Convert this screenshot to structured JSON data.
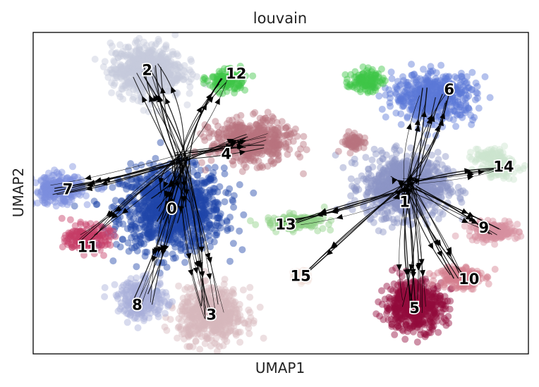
{
  "chart_data": {
    "type": "scatter",
    "title": "louvain",
    "xlabel": "UMAP1",
    "ylabel": "UMAP2",
    "grid": false,
    "legend": "on data",
    "xlim": [
      0,
      10
    ],
    "ylim": [
      0,
      10
    ],
    "stream": {
      "color": "#000000",
      "arrows": true
    },
    "clusters": [
      {
        "name": "0",
        "color": "#1f44a8",
        "center": [
          2.8,
          4.5
        ],
        "spread": [
          0.95,
          1.15
        ],
        "n": 1100,
        "label_pos": [
          2.8,
          4.5
        ]
      },
      {
        "name": "1",
        "color": "#8b95c6",
        "center": [
          7.5,
          5.2
        ],
        "spread": [
          0.75,
          0.85
        ],
        "n": 900,
        "label_pos": [
          7.5,
          4.7
        ]
      },
      {
        "name": "2",
        "color": "#c5c9dc",
        "center": [
          2.3,
          8.8
        ],
        "spread": [
          0.65,
          0.75
        ],
        "n": 600,
        "label_pos": [
          2.3,
          8.8
        ]
      },
      {
        "name": "3",
        "color": "#d7b7bd",
        "center": [
          3.6,
          1.2
        ],
        "spread": [
          0.6,
          0.75
        ],
        "n": 550,
        "label_pos": [
          3.6,
          1.2
        ]
      },
      {
        "name": "4",
        "color": "#b9747f",
        "center": [
          4.4,
          6.6
        ],
        "spread": [
          0.75,
          0.6
        ],
        "n": 500,
        "label_pos": [
          3.9,
          6.2
        ]
      },
      {
        "name": "5",
        "color": "#930b3b",
        "center": [
          7.7,
          1.5
        ],
        "spread": [
          0.55,
          0.7
        ],
        "n": 520,
        "label_pos": [
          7.7,
          1.4
        ]
      },
      {
        "name": "6",
        "color": "#5c78d8",
        "center": [
          8.1,
          8.0
        ],
        "spread": [
          0.75,
          0.65
        ],
        "n": 520,
        "label_pos": [
          8.4,
          8.2
        ]
      },
      {
        "name": "7",
        "color": "#7d8ede",
        "center": [
          0.5,
          5.1
        ],
        "spread": [
          0.45,
          0.4
        ],
        "n": 260,
        "label_pos": [
          0.7,
          5.1
        ]
      },
      {
        "name": "8",
        "color": "#a9b0d9",
        "center": [
          2.2,
          1.7
        ],
        "spread": [
          0.45,
          0.55
        ],
        "n": 240,
        "label_pos": [
          2.1,
          1.5
        ]
      },
      {
        "name": "9",
        "color": "#d6919f",
        "center": [
          9.3,
          3.8
        ],
        "spread": [
          0.45,
          0.25
        ],
        "n": 180,
        "label_pos": [
          9.1,
          3.9
        ]
      },
      {
        "name": "10",
        "color": "#d47f8d",
        "center": [
          8.6,
          2.4
        ],
        "spread": [
          0.4,
          0.35
        ],
        "n": 160,
        "label_pos": [
          8.8,
          2.3
        ]
      },
      {
        "name": "11",
        "color": "#c53c65",
        "center": [
          1.1,
          3.6
        ],
        "spread": [
          0.4,
          0.35
        ],
        "n": 180,
        "label_pos": [
          1.1,
          3.3
        ]
      },
      {
        "name": "12",
        "color": "#3ec548",
        "center": [
          3.9,
          8.5
        ],
        "spread": [
          0.35,
          0.3
        ],
        "n": 130,
        "label_pos": [
          4.1,
          8.7
        ]
      },
      {
        "name": "13",
        "color": "#8ed184",
        "center": [
          5.3,
          4.1
        ],
        "spread": [
          0.55,
          0.2
        ],
        "n": 150,
        "label_pos": [
          5.1,
          4.0
        ]
      },
      {
        "name": "14",
        "color": "#cde5cf",
        "center": [
          9.4,
          5.8
        ],
        "spread": [
          0.35,
          0.3
        ],
        "n": 110,
        "label_pos": [
          9.5,
          5.8
        ]
      },
      {
        "name": "15",
        "color": "#f1dfd9",
        "center": [
          5.4,
          2.4
        ],
        "spread": [
          0.15,
          0.2
        ],
        "n": 35,
        "label_pos": [
          5.4,
          2.4
        ]
      }
    ],
    "secondary_groups": [
      {
        "cluster": "12",
        "center": [
          6.7,
          8.5
        ],
        "spread": [
          0.3,
          0.3
        ],
        "n": 110
      },
      {
        "cluster": "4",
        "center": [
          6.5,
          6.6
        ],
        "spread": [
          0.2,
          0.25
        ],
        "n": 60
      },
      {
        "cluster": "14",
        "center": [
          9.2,
          6.2
        ],
        "spread": [
          0.3,
          0.2
        ],
        "n": 60
      }
    ]
  }
}
